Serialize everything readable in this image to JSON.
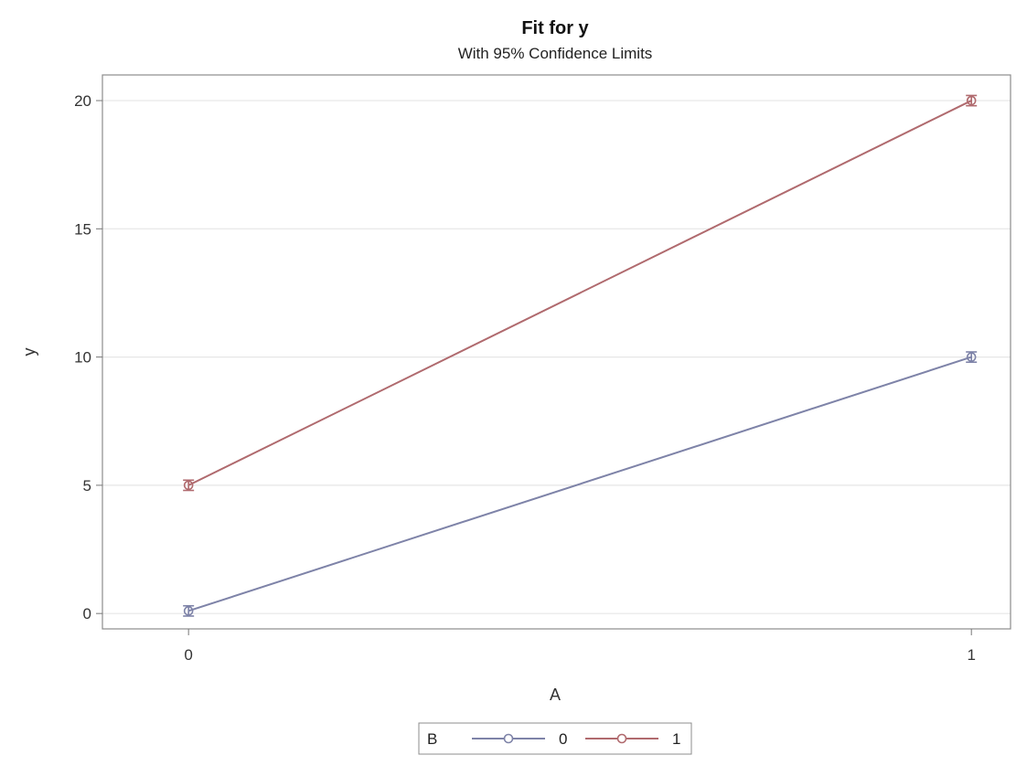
{
  "chart_data": {
    "type": "line",
    "title": "Fit for y",
    "subtitle": "With 95% Confidence Limits",
    "xlabel": "A",
    "ylabel": "y",
    "x": [
      0,
      1
    ],
    "x_tick_labels": [
      "0",
      "1"
    ],
    "y_ticks": [
      0,
      5,
      10,
      15,
      20
    ],
    "y_tick_labels": [
      "0",
      "5",
      "10",
      "15",
      "20"
    ],
    "xlim": [
      -0.11,
      1.05
    ],
    "ylim": [
      -0.6,
      21.0
    ],
    "grid": "horizontal",
    "legend": {
      "title": "B",
      "placement": "bottom-center"
    },
    "series": [
      {
        "name": "0",
        "color": "#7e83a8",
        "values": [
          0.1,
          10.0
        ],
        "ci_lower": [
          -0.1,
          9.8
        ],
        "ci_upper": [
          0.3,
          10.2
        ]
      },
      {
        "name": "1",
        "color": "#b06a6e",
        "values": [
          5.0,
          20.0
        ],
        "ci_lower": [
          4.8,
          19.8
        ],
        "ci_upper": [
          5.2,
          20.2
        ]
      }
    ]
  }
}
